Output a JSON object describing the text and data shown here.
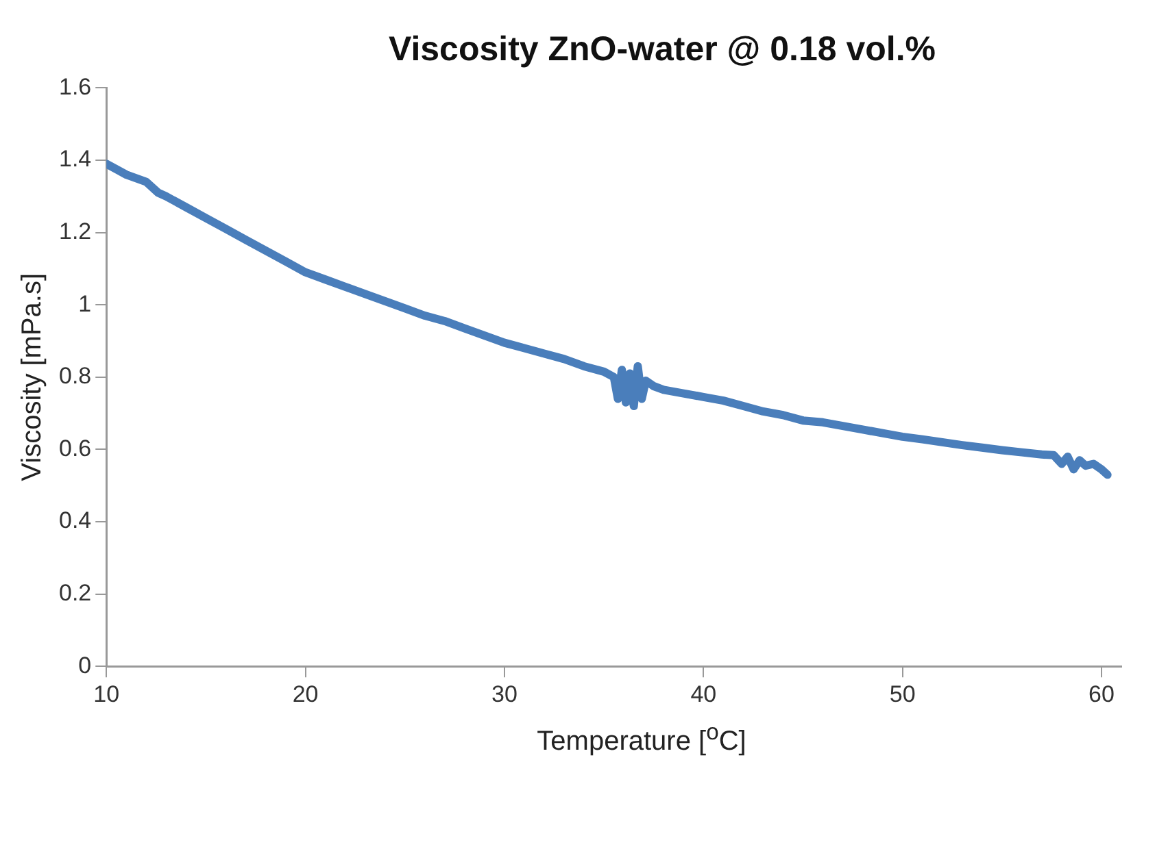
{
  "chart_data": {
    "type": "line",
    "title": "Viscosity ZnO-water @ 0.18 vol.%",
    "xlabel": "Temperature [$^{o}$C]",
    "ylabel": "Viscosity [mPa.s]",
    "xlim": [
      10,
      61
    ],
    "xticks": [
      10,
      20,
      30,
      40,
      50,
      60
    ],
    "ylim": [
      0,
      1.6
    ],
    "yticks": [
      0,
      0.2,
      0.4,
      0.6,
      0.8,
      1,
      1.2,
      1.4,
      1.6
    ],
    "grid": false,
    "legend": false,
    "marker": "none",
    "line_style": "solid",
    "series": [
      {
        "color": "#4a7ebb",
        "x": [
          10,
          11,
          12,
          12.6,
          13,
          14,
          15,
          16,
          17,
          18,
          19,
          20,
          21,
          22,
          23,
          24,
          25,
          26,
          27,
          28,
          29,
          30,
          31,
          32,
          33,
          34,
          35,
          35.5,
          35.7,
          35.9,
          36.1,
          36.3,
          36.5,
          36.7,
          36.9,
          37.1,
          37.5,
          38,
          39,
          40,
          41,
          42,
          43,
          44,
          45,
          46,
          47,
          48,
          49,
          50,
          51,
          52,
          53,
          54,
          55,
          56,
          57,
          57.6,
          58,
          58.3,
          58.6,
          58.9,
          59.2,
          59.6,
          60,
          60.3
        ],
        "values": [
          1.39,
          1.36,
          1.34,
          1.31,
          1.3,
          1.27,
          1.24,
          1.21,
          1.18,
          1.15,
          1.12,
          1.09,
          1.07,
          1.05,
          1.03,
          1.01,
          0.99,
          0.97,
          0.955,
          0.935,
          0.915,
          0.895,
          0.88,
          0.865,
          0.85,
          0.83,
          0.815,
          0.8,
          0.74,
          0.82,
          0.73,
          0.81,
          0.72,
          0.83,
          0.74,
          0.79,
          0.775,
          0.765,
          0.755,
          0.745,
          0.735,
          0.72,
          0.705,
          0.695,
          0.68,
          0.675,
          0.665,
          0.655,
          0.645,
          0.635,
          0.628,
          0.62,
          0.612,
          0.605,
          0.598,
          0.592,
          0.586,
          0.584,
          0.56,
          0.58,
          0.545,
          0.57,
          0.555,
          0.56,
          0.545,
          0.53
        ]
      }
    ]
  }
}
